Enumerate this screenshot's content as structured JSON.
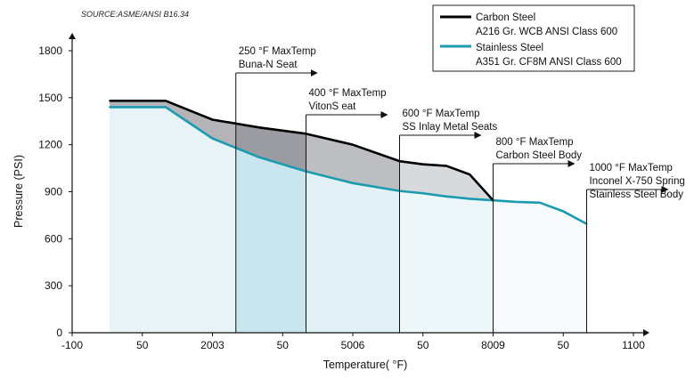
{
  "chart_data": {
    "type": "area",
    "source": "SOURCE:ASME/ANSI B16.34",
    "xlabel": "Temperature( °F)",
    "ylabel": "Pressure (PSI)",
    "x_tick_labels": [
      "-100",
      "50",
      "2003",
      "50",
      "5006",
      "50",
      "8009",
      "50",
      "1100"
    ],
    "xlim": [
      -100,
      1100
    ],
    "y_ticks": [
      0,
      300,
      600,
      900,
      1200,
      1500,
      1800
    ],
    "ylim": [
      0,
      1800
    ],
    "series": [
      {
        "name": "Carbon Steel",
        "detail": "A216 Gr. WCB ANSI Class 600",
        "color": "#000000",
        "x": [
          -20,
          100,
          200,
          300,
          400,
          500,
          600,
          650,
          700,
          750,
          800
        ],
        "y": [
          1480,
          1480,
          1360,
          1310,
          1270,
          1200,
          1095,
          1075,
          1065,
          1010,
          845
        ]
      },
      {
        "name": "Stainless Steel",
        "detail": "A351 Gr. CF8M ANSI Class 600",
        "color": "#1a9bb0",
        "x": [
          -20,
          100,
          200,
          300,
          400,
          500,
          600,
          650,
          700,
          750,
          800,
          850,
          900,
          950,
          1000
        ],
        "y": [
          1440,
          1440,
          1240,
          1120,
          1030,
          955,
          905,
          890,
          870,
          855,
          845,
          835,
          830,
          775,
          695
        ]
      }
    ],
    "annotations": [
      {
        "x": 250,
        "line1": "250 °F MaxTemp",
        "line2": "Buna-N Seat"
      },
      {
        "x": 400,
        "line1": "400 °F MaxTemp",
        "line2": "VitonS eat"
      },
      {
        "x": 600,
        "line1": "600 °F MaxTemp",
        "line2": "SS Inlay Metal Seats"
      },
      {
        "x": 800,
        "line1": "800 °F MaxTemp",
        "line2": "Carbon Steel Body"
      },
      {
        "x": 1000,
        "line1": "1000 °F MaxTemp",
        "line2": "Inconel X-750 Spring",
        "line3": "Stainless Steel Body"
      }
    ],
    "legend_position": "top-right",
    "grid": false
  }
}
